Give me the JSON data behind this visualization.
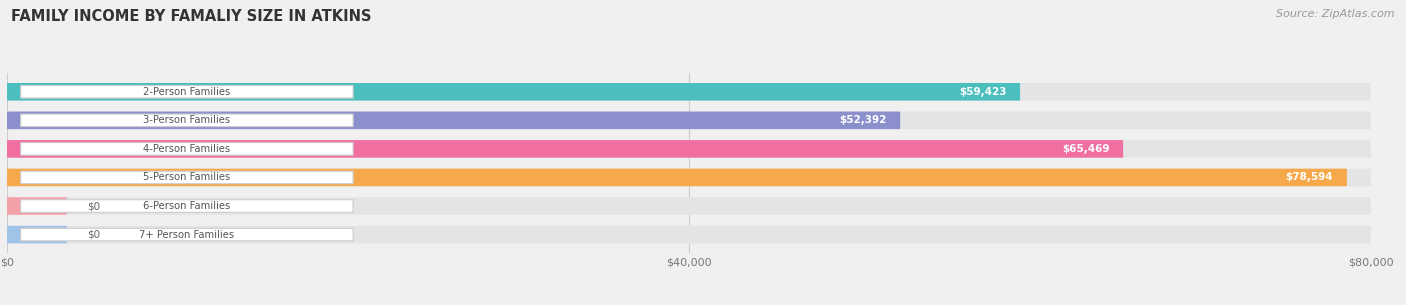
{
  "title": "FAMILY INCOME BY FAMALIY SIZE IN ATKINS",
  "source": "Source: ZipAtlas.com",
  "categories": [
    "2-Person Families",
    "3-Person Families",
    "4-Person Families",
    "5-Person Families",
    "6-Person Families",
    "7+ Person Families"
  ],
  "values": [
    59423,
    52392,
    65469,
    78594,
    0,
    0
  ],
  "bar_colors": [
    "#4BBFBE",
    "#8B8FCC",
    "#F06EA0",
    "#F7A84A",
    "#F4A0A8",
    "#A0C4E8"
  ],
  "value_labels": [
    "$59,423",
    "$52,392",
    "$65,469",
    "$78,594",
    "$0",
    "$0"
  ],
  "x_max": 80000,
  "x_ticks": [
    0,
    40000,
    80000
  ],
  "x_tick_labels": [
    "$0",
    "$40,000",
    "$80,000"
  ],
  "background_color": "#f0f0f0",
  "bar_background_color": "#e4e4e4",
  "title_color": "#333333",
  "source_color": "#999999",
  "label_bg_color": "#ffffff",
  "label_text_color": "#555555"
}
